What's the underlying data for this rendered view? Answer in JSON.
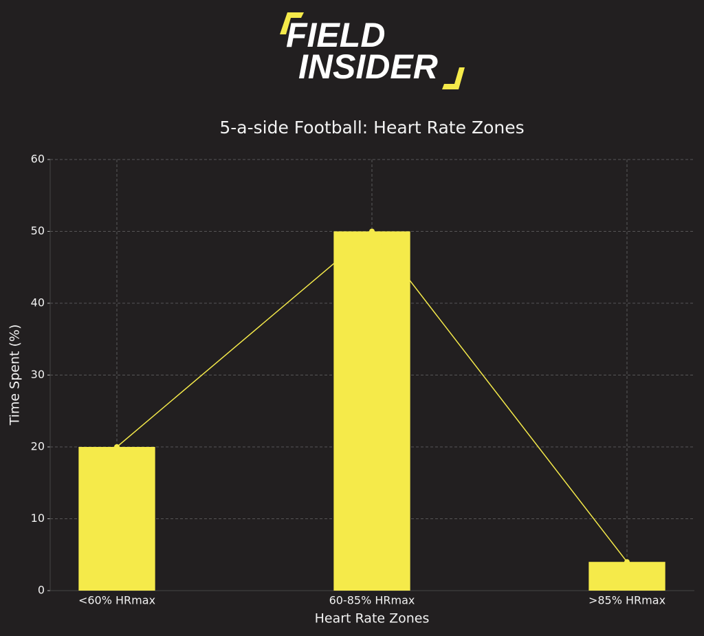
{
  "logo": {
    "lines": [
      "FIELD",
      "INSIDER"
    ]
  },
  "chart_data": {
    "type": "bar",
    "title": "5-a-side Football: Heart Rate Zones",
    "x_label": "Heart Rate Zones",
    "y_label": "Time Spent (%)",
    "categories": [
      "<60% HRmax",
      "60-85% HRmax",
      ">85% HRmax"
    ],
    "values": [
      20,
      50,
      4
    ],
    "color": "#f5ea4a",
    "line_overlay": true,
    "ylim": [
      0,
      60
    ],
    "yticks": [
      0,
      10,
      20,
      30,
      40,
      50,
      60
    ],
    "grid": true
  }
}
